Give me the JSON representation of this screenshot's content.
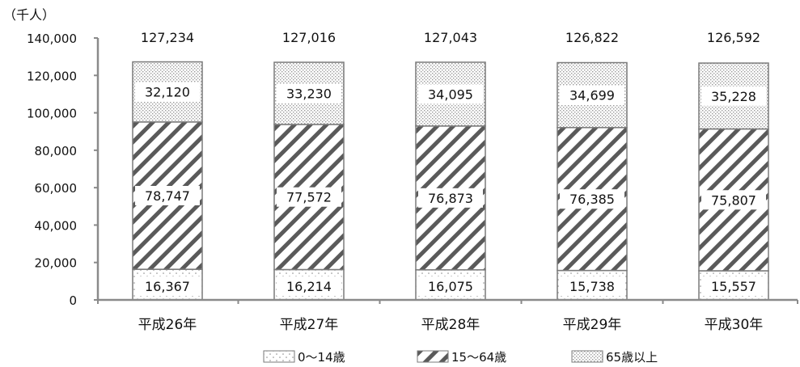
{
  "chart_data": {
    "type": "bar",
    "stacked": true,
    "unit_label": "（千人）",
    "categories": [
      "平成26年",
      "平成27年",
      "平成28年",
      "平成29年",
      "平成30年"
    ],
    "series": [
      {
        "name": "0～14歳",
        "values": [
          16367,
          16214,
          16075,
          15738,
          15557
        ],
        "value_labels": [
          "16,367",
          "16,214",
          "16,075",
          "15,738",
          "15,557"
        ]
      },
      {
        "name": "15～64歳",
        "values": [
          78747,
          77572,
          76873,
          76385,
          75807
        ],
        "value_labels": [
          "78,747",
          "77,572",
          "76,873",
          "76,385",
          "75,807"
        ]
      },
      {
        "name": "65歳以上",
        "values": [
          32120,
          33230,
          34095,
          34699,
          35228
        ],
        "value_labels": [
          "32,120",
          "33,230",
          "34,095",
          "34,699",
          "35,228"
        ]
      }
    ],
    "totals": [
      127234,
      127016,
      127043,
      126822,
      126592
    ],
    "total_labels": [
      "127,234",
      "127,016",
      "127,043",
      "126,822",
      "126,592"
    ],
    "ylim": [
      0,
      140000
    ],
    "yticks": [
      0,
      20000,
      40000,
      60000,
      80000,
      100000,
      120000,
      140000
    ],
    "ytick_labels": [
      "0",
      "20,000",
      "40,000",
      "60,000",
      "80,000",
      "100,000",
      "120,000",
      "140,000"
    ],
    "legend_position": "bottom",
    "grid": false
  }
}
